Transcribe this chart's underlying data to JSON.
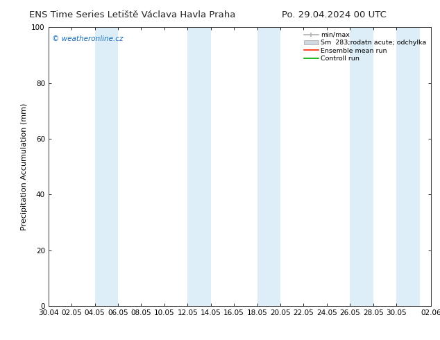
{
  "title_left": "ENS Time Series Letiště Václava Havla Praha",
  "title_right": "Po. 29.04.2024 00 UTC",
  "ylabel": "Precipitation Accumulation (mm)",
  "watermark": "© weatheronline.cz",
  "ylim": [
    0,
    100
  ],
  "yticks": [
    0,
    20,
    40,
    60,
    80,
    100
  ],
  "x_labels": [
    "30.04",
    "02.05",
    "04.05",
    "06.05",
    "08.05",
    "10.05",
    "12.05",
    "14.05",
    "16.05",
    "18.05",
    "20.05",
    "22.05",
    "24.05",
    "26.05",
    "28.05",
    "30.05",
    "02.06"
  ],
  "x_values": [
    0,
    2,
    4,
    6,
    8,
    10,
    12,
    14,
    16,
    18,
    20,
    22,
    24,
    26,
    28,
    30,
    33
  ],
  "background_color": "#ffffff",
  "plot_bg_color": "#ffffff",
  "band_color": "#ddeef8",
  "legend_labels": [
    "min/max",
    "Sm  283;rodatn acute; odchylka",
    "Ensemble mean run",
    "Controll run"
  ],
  "title_fontsize": 9.5,
  "axis_fontsize": 8,
  "tick_fontsize": 7.5
}
